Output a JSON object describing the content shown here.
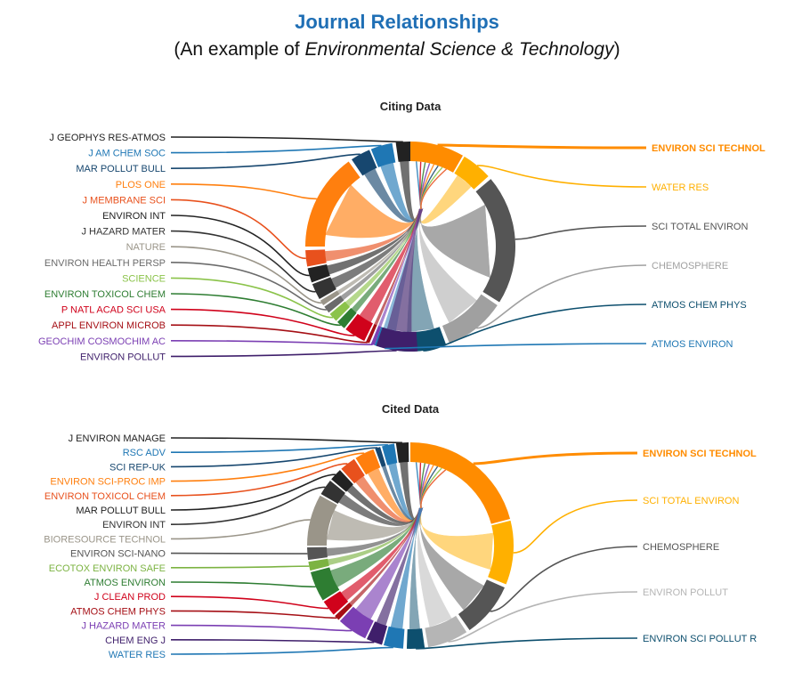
{
  "header": {
    "title": "Journal Relationships",
    "subtitle_prefix": "(An example of ",
    "subtitle_journal": "Environmental Science & Technology",
    "subtitle_suffix": ")"
  },
  "diagrams": [
    {
      "title": "Citing Data",
      "left": [
        {
          "label": "J GEOPHYS RES-ATMOS",
          "color": "#222222"
        },
        {
          "label": "J AM CHEM SOC",
          "color": "#1f77b4"
        },
        {
          "label": "MAR POLLUT BULL",
          "color": "#17476f"
        },
        {
          "label": "PLOS ONE",
          "color": "#ff7f0e"
        },
        {
          "label": "J MEMBRANE SCI",
          "color": "#e8511d"
        },
        {
          "label": "ENVIRON INT",
          "color": "#222222"
        },
        {
          "label": "J HAZARD MATER",
          "color": "#333333"
        },
        {
          "label": "NATURE",
          "color": "#9a9589"
        },
        {
          "label": "ENVIRON HEALTH PERSP",
          "color": "#6b6b6b"
        },
        {
          "label": "SCIENCE",
          "color": "#8bc34a"
        },
        {
          "label": "ENVIRON TOXICOL CHEM",
          "color": "#2e7d32"
        },
        {
          "label": "P NATL ACAD SCI USA",
          "color": "#d0021b"
        },
        {
          "label": "APPL ENVIRON MICROB",
          "color": "#a50f15"
        },
        {
          "label": "GEOCHIM COSMOCHIM AC",
          "color": "#7b3fb3"
        },
        {
          "label": "ENVIRON POLLUT",
          "color": "#3f1f6b"
        }
      ],
      "right": [
        {
          "label": "ENVIRON SCI TECHNOL",
          "color": "#ff8c00",
          "bold": true
        },
        {
          "label": "WATER RES",
          "color": "#ffb000"
        },
        {
          "label": "SCI TOTAL ENVIRON",
          "color": "#555555"
        },
        {
          "label": "CHEMOSPHERE",
          "color": "#a0a0a0"
        },
        {
          "label": "ATMOS CHEM PHYS",
          "color": "#0d4f6e"
        },
        {
          "label": "ATMOS ENVIRON",
          "color": "#1f77b4"
        }
      ]
    },
    {
      "title": "Cited Data",
      "left": [
        {
          "label": "J ENVIRON MANAGE",
          "color": "#222222"
        },
        {
          "label": "RSC ADV",
          "color": "#1f77b4"
        },
        {
          "label": "SCI REP-UK",
          "color": "#17476f"
        },
        {
          "label": "ENVIRON SCI-PROC IMP",
          "color": "#ff7f0e"
        },
        {
          "label": "ENVIRON TOXICOL CHEM",
          "color": "#e8511d"
        },
        {
          "label": "MAR POLLUT BULL",
          "color": "#222222"
        },
        {
          "label": "ENVIRON INT",
          "color": "#333333"
        },
        {
          "label": "BIORESOURCE TECHNOL",
          "color": "#9a9589"
        },
        {
          "label": "ENVIRON SCI-NANO",
          "color": "#555555"
        },
        {
          "label": "ECOTOX ENVIRON SAFE",
          "color": "#7cb342"
        },
        {
          "label": "ATMOS ENVIRON",
          "color": "#2e7d32"
        },
        {
          "label": "J CLEAN PROD",
          "color": "#d0021b"
        },
        {
          "label": "ATMOS CHEM PHYS",
          "color": "#a50f15"
        },
        {
          "label": "J HAZARD MATER",
          "color": "#7b3fb3"
        },
        {
          "label": "CHEM ENG J",
          "color": "#3f1f6b"
        },
        {
          "label": "WATER RES",
          "color": "#1f77b4"
        }
      ],
      "right": [
        {
          "label": "ENVIRON SCI TECHNOL",
          "color": "#ff8c00",
          "bold": true
        },
        {
          "label": "SCI TOTAL ENVIRON",
          "color": "#ffb000"
        },
        {
          "label": "CHEMOSPHERE",
          "color": "#555555"
        },
        {
          "label": "ENVIRON POLLUT",
          "color": "#b5b5b5"
        },
        {
          "label": "ENVIRON SCI POLLUT R",
          "color": "#0d4f6e"
        }
      ]
    }
  ]
}
